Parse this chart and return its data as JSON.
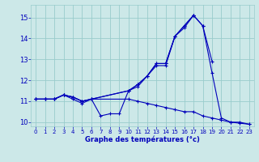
{
  "title": "Graphe des températures (°c)",
  "bg_color": "#cce8e8",
  "line_color": "#0000bb",
  "grid_color": "#99cccc",
  "xlim": [
    -0.5,
    23.5
  ],
  "ylim": [
    9.8,
    15.6
  ],
  "yticks": [
    10,
    11,
    12,
    13,
    14,
    15
  ],
  "xticks": [
    0,
    1,
    2,
    3,
    4,
    5,
    6,
    7,
    8,
    9,
    10,
    11,
    12,
    13,
    14,
    15,
    16,
    17,
    18,
    19,
    20,
    21,
    22,
    23
  ],
  "series": [
    {
      "x": [
        0,
        1,
        2,
        3,
        4,
        5,
        6,
        7,
        8,
        9,
        10,
        11,
        12,
        13,
        14,
        15,
        16,
        17
      ],
      "y": [
        11.1,
        11.1,
        11.1,
        11.3,
        11.1,
        10.9,
        11.1,
        10.3,
        10.4,
        10.4,
        11.5,
        11.7,
        12.2,
        12.7,
        12.7,
        14.1,
        14.5,
        15.1
      ]
    },
    {
      "x": [
        0,
        1,
        2,
        3,
        4,
        5,
        6,
        10,
        11,
        12,
        13,
        14,
        15,
        16,
        17,
        18,
        19
      ],
      "y": [
        11.1,
        11.1,
        11.1,
        11.3,
        11.2,
        11.0,
        11.1,
        11.5,
        11.8,
        12.2,
        12.8,
        12.8,
        14.1,
        14.6,
        15.1,
        14.6,
        12.9
      ]
    },
    {
      "x": [
        0,
        1,
        2,
        3,
        4,
        5,
        6,
        10,
        11,
        12,
        13,
        14,
        15,
        16,
        17,
        18,
        19,
        20,
        21,
        22,
        23
      ],
      "y": [
        11.1,
        11.1,
        11.1,
        11.3,
        11.2,
        11.0,
        11.1,
        11.5,
        11.8,
        12.2,
        12.8,
        12.8,
        14.1,
        14.6,
        15.1,
        14.6,
        12.35,
        10.2,
        10.0,
        10.0,
        9.9
      ]
    },
    {
      "x": [
        0,
        1,
        2,
        3,
        4,
        5,
        6,
        10,
        11,
        12,
        13,
        14,
        15,
        16,
        17,
        18,
        19,
        20,
        21,
        22,
        23
      ],
      "y": [
        11.1,
        11.1,
        11.1,
        11.3,
        11.2,
        11.0,
        11.1,
        11.1,
        11.0,
        10.9,
        10.8,
        10.7,
        10.6,
        10.5,
        10.5,
        10.3,
        10.2,
        10.1,
        10.0,
        9.95,
        9.9
      ]
    }
  ]
}
